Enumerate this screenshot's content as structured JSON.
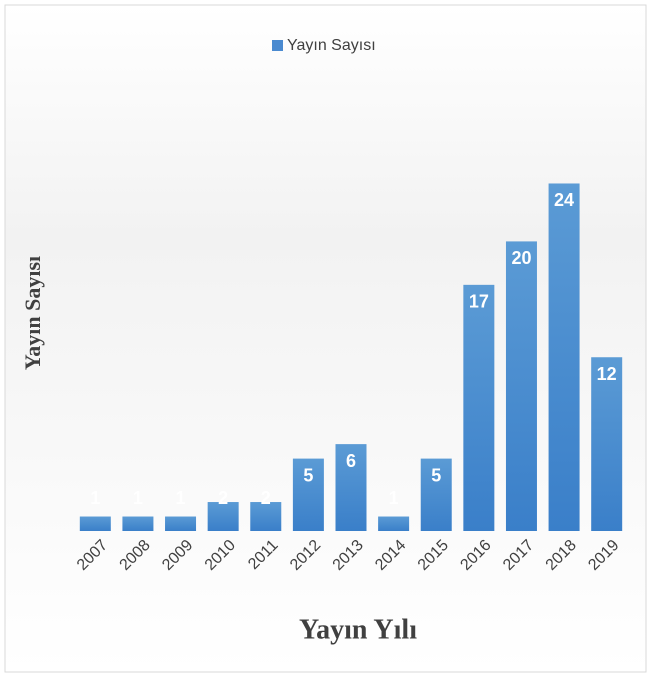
{
  "chart_data": {
    "type": "bar",
    "legend": "Yayın Sayısı",
    "y_label": "Yayın Sayısı",
    "x_label": "Yayın Yılı",
    "categories": [
      "2007",
      "2008",
      "2009",
      "2010",
      "2011",
      "2012",
      "2013",
      "2014",
      "2015",
      "2016",
      "2017",
      "2018",
      "2019"
    ],
    "values": [
      1,
      1,
      1,
      2,
      2,
      5,
      6,
      1,
      5,
      17,
      20,
      24,
      12
    ],
    "color": "#4a8ad0",
    "ylim": [
      0,
      25
    ],
    "legend_position": "top"
  }
}
